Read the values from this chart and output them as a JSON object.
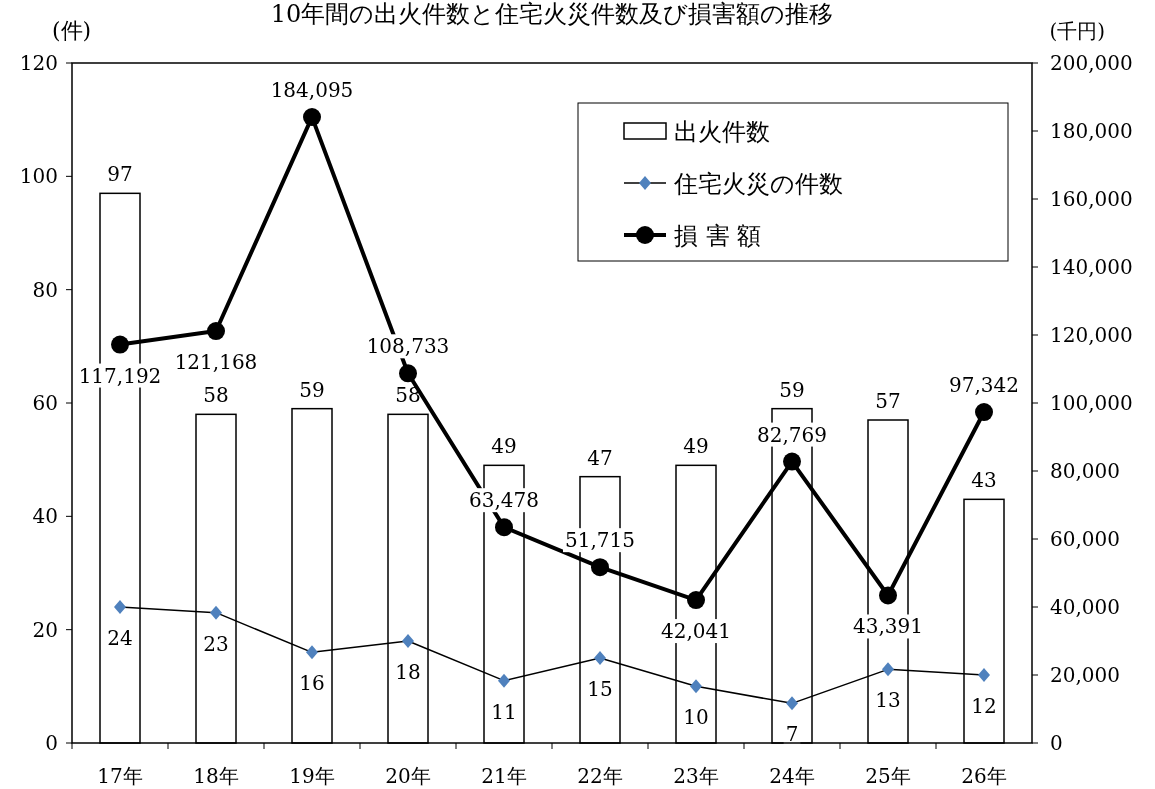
{
  "chart_data": {
    "type": "bar",
    "title": "10年間の出火件数と住宅火災件数及び損害額の推移",
    "ylabel": "(件)",
    "y2label": "(千円)",
    "categories": [
      "17年",
      "18年",
      "19年",
      "20年",
      "21年",
      "22年",
      "23年",
      "24年",
      "25年",
      "26年"
    ],
    "series": [
      {
        "name": "出火件数",
        "color": "#ffffff",
        "values": [
          97,
          58,
          59,
          58,
          49,
          47,
          49,
          59,
          57,
          43
        ]
      },
      {
        "name": "住宅火災の件数",
        "type": "line",
        "color": "#4f81bd",
        "marker": "diamond",
        "values": [
          24,
          23,
          16,
          18,
          11,
          15,
          10,
          7,
          13,
          12
        ]
      },
      {
        "name": "損 害 額",
        "type": "line",
        "axis": "y2",
        "color": "#000000",
        "marker": "circle",
        "values": [
          117192,
          121168,
          184095,
          108733,
          63478,
          51715,
          42041,
          82769,
          43391,
          97342
        ],
        "value_labels": [
          "117,192",
          "121,168",
          "184,095",
          "108,733",
          "63,478",
          "51,715",
          "42,041",
          "82,769",
          "43,391",
          "97,342"
        ]
      }
    ],
    "ylim": [
      0,
      120
    ],
    "yticks": [
      0,
      20,
      40,
      60,
      80,
      100,
      120
    ],
    "y2lim": [
      0,
      200000
    ],
    "y2ticks": [
      {
        "value": 0,
        "label": "0"
      },
      {
        "value": 20000,
        "label": "20,000"
      },
      {
        "value": 40000,
        "label": "40,000"
      },
      {
        "value": 60000,
        "label": "60,000"
      },
      {
        "value": 80000,
        "label": "80,000"
      },
      {
        "value": 100000,
        "label": "100,000"
      },
      {
        "value": 120000,
        "label": "120,000"
      },
      {
        "value": 140000,
        "label": "140,000"
      },
      {
        "value": 160000,
        "label": "160,000"
      },
      {
        "value": 180000,
        "label": "180,000"
      },
      {
        "value": 200000,
        "label": "200,000"
      }
    ],
    "data_labels": true,
    "legend": "top right",
    "grid": false
  }
}
